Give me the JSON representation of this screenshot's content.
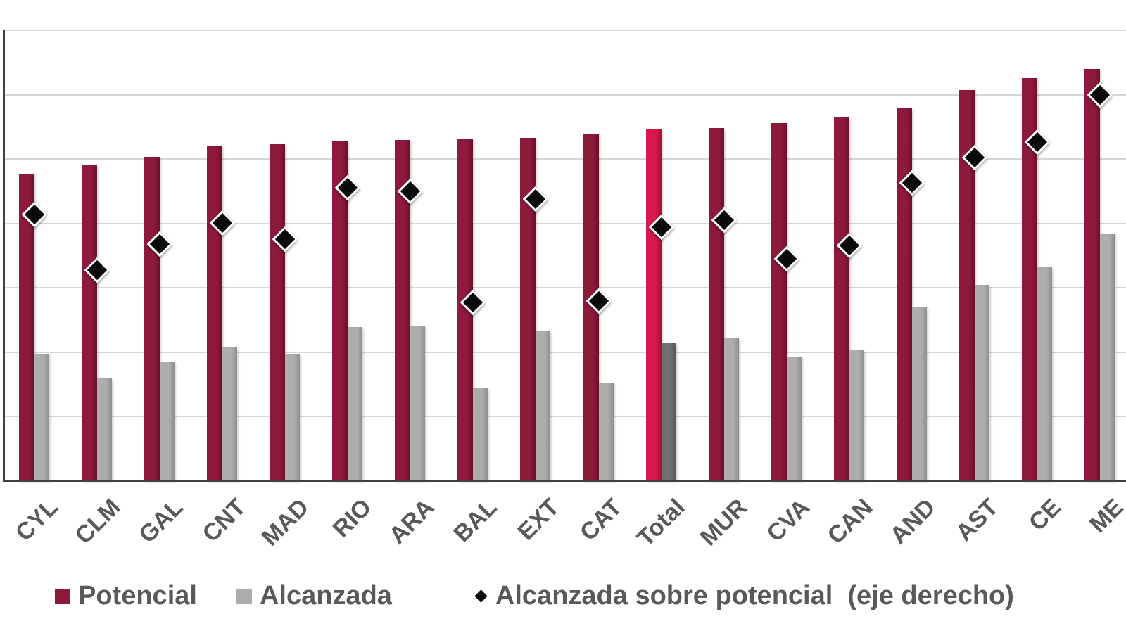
{
  "colors": {
    "potencial": "#8E1A3B",
    "potencial_edge": "#6E0F2C",
    "potencial_highlight": "#D6184E",
    "potencial_highlight_edge": "#A50F3A",
    "alcanzada": "#ADADAD",
    "alcanzada_edge": "#8F8F8F",
    "alcanzada_highlight": "#6F6F6F",
    "alcanzada_highlight_edge": "#555555",
    "marker": "#0A0A0A",
    "axis_line": "#404040",
    "gridline": "#D6D6D6",
    "label_text": "#595959",
    "background": "#FFFFFF"
  },
  "chart_data": {
    "type": "bar",
    "subtype": "grouped bars with diamond scatter overlay (combo chart)",
    "title": "",
    "xlabel": "",
    "ylabel": "",
    "categories": [
      "CYL",
      "CLM",
      "GAL",
      "CNT",
      "MAD",
      "RIO",
      "ARA",
      "BAL",
      "EXT",
      "CAT",
      "Total",
      "MUR",
      "CVA",
      "CAN",
      "AND",
      "AST",
      "CE",
      "ME"
    ],
    "highlight_category": "Total",
    "series": [
      {
        "name": "Potencial",
        "type": "bar",
        "axis": "left",
        "values": [
          47.7,
          49.0,
          50.3,
          52.1,
          52.3,
          52.9,
          53.0,
          53.1,
          53.3,
          53.9,
          54.7,
          54.8,
          55.6,
          56.5,
          57.9,
          60.7,
          62.6,
          64.0
        ]
      },
      {
        "name": "Alcanzada",
        "type": "bar",
        "axis": "left",
        "values": [
          19.8,
          15.9,
          18.5,
          20.7,
          19.7,
          23.9,
          24.0,
          14.5,
          23.4,
          15.3,
          21.4,
          22.2,
          19.3,
          20.3,
          27.0,
          30.5,
          33.2,
          38.4
        ]
      },
      {
        "name": "Alcanzada sobre potencial (eje derecho)",
        "type": "scatter",
        "marker": "diamond",
        "axis": "right",
        "values": [
          41.4,
          32.8,
          36.8,
          40.1,
          37.6,
          45.5,
          45.0,
          27.7,
          43.8,
          28.0,
          39.4,
          40.5,
          34.5,
          36.6,
          46.3,
          50.2,
          52.6,
          60.0
        ]
      }
    ],
    "left_axis": {
      "min": 0,
      "max": 70,
      "gridline_step": 10,
      "tick_labels_visible": false
    },
    "right_axis": {
      "min": 0,
      "max": 70,
      "tick_labels_visible": false
    },
    "grid": true,
    "legend_position": "bottom"
  },
  "legend": {
    "items": [
      {
        "label": "Potencial",
        "swatch": "square"
      },
      {
        "label": "Alcanzada",
        "swatch": "square"
      },
      {
        "label": "Alcanzada sobre potencial  (eje derecho)",
        "swatch": "diamond"
      }
    ]
  }
}
